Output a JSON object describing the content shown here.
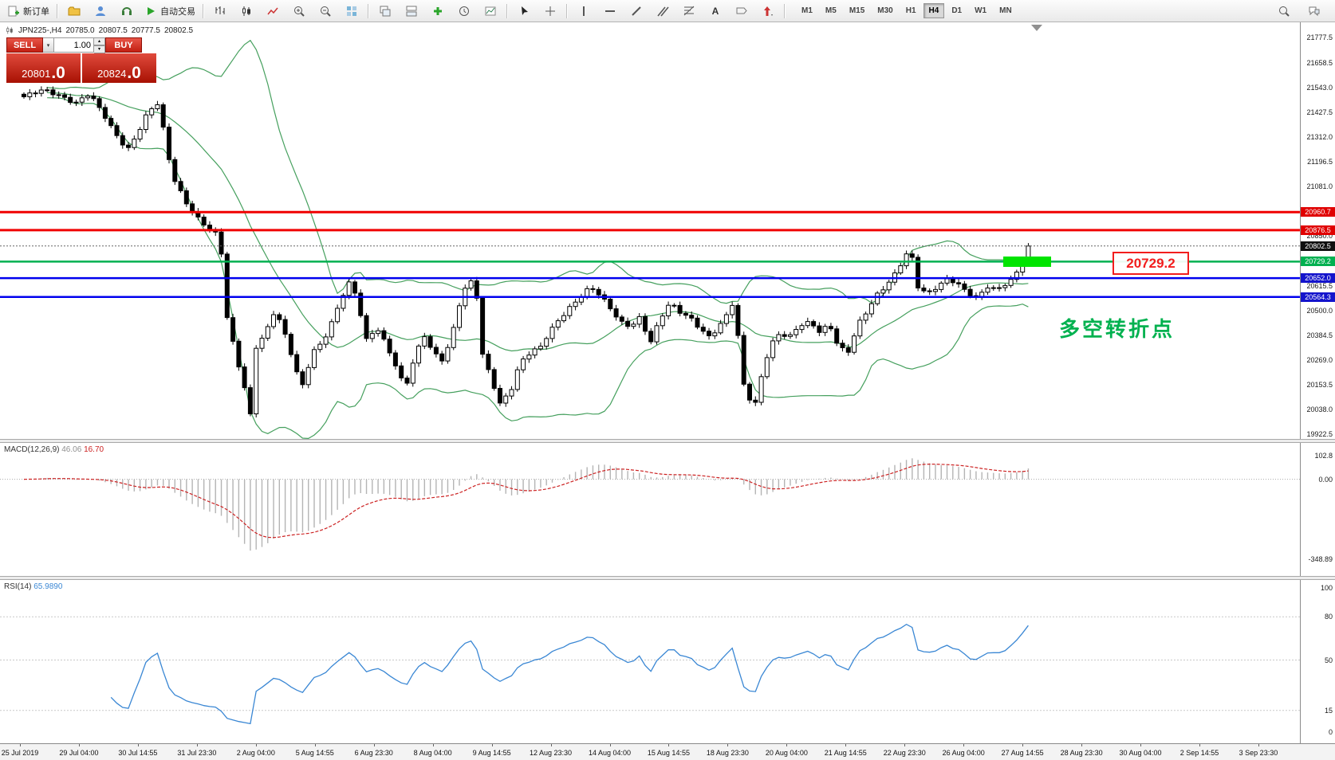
{
  "toolbar": {
    "new_order_label": "新订单",
    "autotrading_label": "自动交易",
    "timeframes": [
      "M1",
      "M5",
      "M15",
      "M30",
      "H1",
      "H4",
      "D1",
      "W1",
      "MN"
    ],
    "active_timeframe": "H4"
  },
  "symbol": {
    "name_period": "JPN225-,H4",
    "open": "20785.0",
    "high": "20807.5",
    "low": "20777.5",
    "close": "20802.5"
  },
  "trade": {
    "sell_label": "SELL",
    "buy_label": "BUY",
    "volume": "1.00",
    "sell_price": "20801",
    "sell_price_big": ".0",
    "buy_price": "20824",
    "buy_price_big": ".0"
  },
  "price_axis": {
    "plain": [
      "21777.5",
      "21658.5",
      "21543.0",
      "21427.5",
      "21312.0",
      "21196.5",
      "21081.0",
      "20850.0",
      "20615.5",
      "20500.0",
      "20384.5",
      "20269.0",
      "20153.5",
      "20038.0",
      "19922.5"
    ],
    "flags": [
      {
        "text": "20960.7",
        "bg": "#e00000"
      },
      {
        "text": "20876.5",
        "bg": "#e00000"
      },
      {
        "text": "20802.5",
        "bg": "#101010"
      },
      {
        "text": "20729.2",
        "bg": "#00b050"
      },
      {
        "text": "20652.0",
        "bg": "#1414cc"
      },
      {
        "text": "20564.3",
        "bg": "#1414cc"
      }
    ]
  },
  "hlines": [
    {
      "price": 20960.7,
      "color": "#f00000",
      "width": 3
    },
    {
      "price": 20876.5,
      "color": "#f00000",
      "width": 3
    },
    {
      "price": 20729.2,
      "color": "#00b050",
      "width": 2.5
    },
    {
      "price": 20652.0,
      "color": "#0000ee",
      "width": 2.5
    },
    {
      "price": 20564.3,
      "color": "#0000ee",
      "width": 2.5
    }
  ],
  "annotations": {
    "price_label": "20729.2",
    "label_color": "#f21d1d",
    "note": "多空转折点",
    "note_color": "#00b14f",
    "highlight_color": "#00e400"
  },
  "macd": {
    "name": "MACD(12,26,9)",
    "value_main": "46.06",
    "value_signal": "16.70",
    "axis_labels": [
      "102.8",
      "0.00",
      "-348.89"
    ]
  },
  "rsi": {
    "name": "RSI(14)",
    "value": "65.9890",
    "axis_labels": [
      "100",
      "80",
      "50",
      "15",
      "0"
    ],
    "levels": [
      80,
      50,
      15
    ]
  },
  "time_axis": [
    "25 Jul 2019",
    "29 Jul 04:00",
    "30 Jul 14:55",
    "31 Jul 23:30",
    "2 Aug 04:00",
    "5 Aug 14:55",
    "6 Aug 23:30",
    "8 Aug 04:00",
    "9 Aug 14:55",
    "12 Aug 23:30",
    "14 Aug 04:00",
    "15 Aug 14:55",
    "18 Aug 23:30",
    "20 Aug 04:00",
    "21 Aug 14:55",
    "22 Aug 23:30",
    "26 Aug 04:00",
    "27 Aug 14:55",
    "28 Aug 23:30",
    "30 Aug 04:00",
    "2 Sep 14:55",
    "3 Sep 23:30"
  ],
  "chart_data": {
    "type": "candlestick",
    "symbol": "JPN225-",
    "timeframe": "H4",
    "price_axis_range": [
      19900,
      21800
    ],
    "last_close": 20802.5,
    "candle_count": 174,
    "indicators": [
      "Bollinger Bands",
      "MACD(12,26,9)",
      "RSI(14)"
    ],
    "bollinger_color": "#46a05e",
    "candle_bull": "#ffffff",
    "candle_bear": "#000000",
    "macd_hist_color": "#b4b4b4",
    "macd_signal_color": "#cc2222",
    "rsi_line_color": "#3a87d4",
    "anchors": [
      [
        30,
        21500
      ],
      [
        55,
        21530
      ],
      [
        75,
        21510
      ],
      [
        95,
        21470
      ],
      [
        112,
        21510
      ],
      [
        130,
        21420
      ],
      [
        145,
        21330
      ],
      [
        160,
        21250
      ],
      [
        172,
        21320
      ],
      [
        186,
        21430
      ],
      [
        200,
        21480
      ],
      [
        208,
        21270
      ],
      [
        220,
        21100
      ],
      [
        235,
        20990
      ],
      [
        250,
        20920
      ],
      [
        265,
        20880
      ],
      [
        276,
        20850
      ],
      [
        283,
        20500
      ],
      [
        295,
        20300
      ],
      [
        307,
        20130
      ],
      [
        315,
        19990
      ],
      [
        321,
        20330
      ],
      [
        333,
        20400
      ],
      [
        345,
        20510
      ],
      [
        357,
        20390
      ],
      [
        368,
        20260
      ],
      [
        378,
        20130
      ],
      [
        392,
        20310
      ],
      [
        405,
        20360
      ],
      [
        418,
        20460
      ],
      [
        430,
        20570
      ],
      [
        440,
        20640
      ],
      [
        450,
        20520
      ],
      [
        460,
        20360
      ],
      [
        472,
        20430
      ],
      [
        484,
        20340
      ],
      [
        496,
        20240
      ],
      [
        508,
        20130
      ],
      [
        520,
        20290
      ],
      [
        532,
        20390
      ],
      [
        544,
        20300
      ],
      [
        556,
        20260
      ],
      [
        568,
        20400
      ],
      [
        578,
        20560
      ],
      [
        588,
        20650
      ],
      [
        597,
        20610
      ],
      [
        603,
        20320
      ],
      [
        615,
        20190
      ],
      [
        627,
        20060
      ],
      [
        640,
        20120
      ],
      [
        652,
        20260
      ],
      [
        665,
        20310
      ],
      [
        678,
        20330
      ],
      [
        690,
        20400
      ],
      [
        702,
        20460
      ],
      [
        715,
        20520
      ],
      [
        728,
        20570
      ],
      [
        740,
        20610
      ],
      [
        752,
        20570
      ],
      [
        765,
        20510
      ],
      [
        778,
        20450
      ],
      [
        790,
        20430
      ],
      [
        803,
        20470
      ],
      [
        815,
        20340
      ],
      [
        828,
        20460
      ],
      [
        840,
        20540
      ],
      [
        852,
        20500
      ],
      [
        865,
        20470
      ],
      [
        878,
        20410
      ],
      [
        890,
        20370
      ],
      [
        902,
        20430
      ],
      [
        914,
        20500
      ],
      [
        922,
        20570
      ],
      [
        929,
        20190
      ],
      [
        938,
        20100
      ],
      [
        946,
        20040
      ],
      [
        956,
        20210
      ],
      [
        966,
        20340
      ],
      [
        978,
        20400
      ],
      [
        990,
        20380
      ],
      [
        1003,
        20430
      ],
      [
        1016,
        20440
      ],
      [
        1028,
        20400
      ],
      [
        1040,
        20440
      ],
      [
        1051,
        20340
      ],
      [
        1063,
        20300
      ],
      [
        1076,
        20430
      ],
      [
        1088,
        20500
      ],
      [
        1098,
        20570
      ],
      [
        1108,
        20610
      ],
      [
        1120,
        20660
      ],
      [
        1132,
        20730
      ],
      [
        1141,
        20790
      ],
      [
        1151,
        20610
      ],
      [
        1163,
        20580
      ],
      [
        1176,
        20620
      ],
      [
        1189,
        20650
      ],
      [
        1201,
        20620
      ],
      [
        1213,
        20580
      ],
      [
        1226,
        20560
      ],
      [
        1237,
        20620
      ],
      [
        1249,
        20600
      ],
      [
        1260,
        20620
      ],
      [
        1270,
        20650
      ],
      [
        1280,
        20710
      ],
      [
        1289,
        20802.5
      ]
    ]
  }
}
